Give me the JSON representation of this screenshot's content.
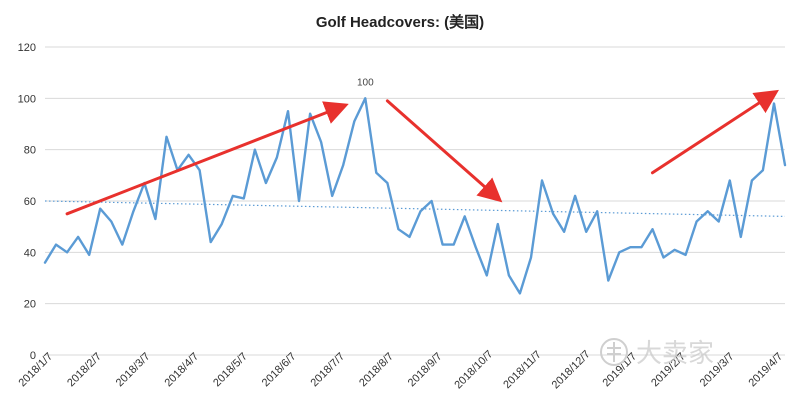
{
  "chart_data": {
    "type": "line",
    "title": "Golf Headcovers: (美国)",
    "xlabel": "",
    "ylabel": "",
    "ylim": [
      0,
      120
    ],
    "yticks": [
      0,
      20,
      40,
      60,
      80,
      100,
      120
    ],
    "grid": "horizontal",
    "legend": "none",
    "x_tick_labels": [
      "2018/1/7",
      "2018/2/7",
      "2018/3/7",
      "2018/4/7",
      "2018/5/7",
      "2018/6/7",
      "2018/7/7",
      "2018/8/7",
      "2018/9/7",
      "2018/10/7",
      "2018/11/7",
      "2018/12/7",
      "2019/1/7",
      "2019/2/7",
      "2019/3/7",
      "2019/4/7"
    ],
    "series": [
      {
        "values": [
          36,
          43,
          40,
          46,
          39,
          57,
          52,
          43,
          56,
          67,
          53,
          85,
          72,
          78,
          72,
          44,
          51,
          62,
          61,
          80,
          67,
          77,
          95,
          60,
          94,
          83,
          62,
          74,
          91,
          100,
          71,
          67,
          49,
          46,
          56,
          60,
          43,
          43,
          54,
          42,
          31,
          51,
          31,
          24,
          38,
          68,
          55,
          48,
          62,
          48,
          56,
          29,
          40,
          42,
          42,
          49,
          38,
          41,
          39,
          52,
          56,
          52,
          68,
          46,
          68,
          72,
          98,
          74
        ],
        "color": "#5b9bd5"
      }
    ],
    "trendline": {
      "start": 60,
      "end": 54,
      "color": "#5b9bd5",
      "style": "dotted"
    },
    "data_labels": [
      {
        "index": 29,
        "text": "100"
      }
    ],
    "annotations": {
      "arrow_color": "#e8312d",
      "arrows": [
        {
          "from": {
            "index": 2,
            "value": 55
          },
          "to": {
            "index": 27,
            "value": 97
          }
        },
        {
          "from": {
            "index": 31,
            "value": 99
          },
          "to": {
            "index": 41,
            "value": 61
          }
        },
        {
          "from": {
            "index": 55,
            "value": 71
          },
          "to": {
            "index": 66,
            "value": 102
          }
        }
      ]
    }
  },
  "watermark": {
    "text": "大卖家"
  }
}
